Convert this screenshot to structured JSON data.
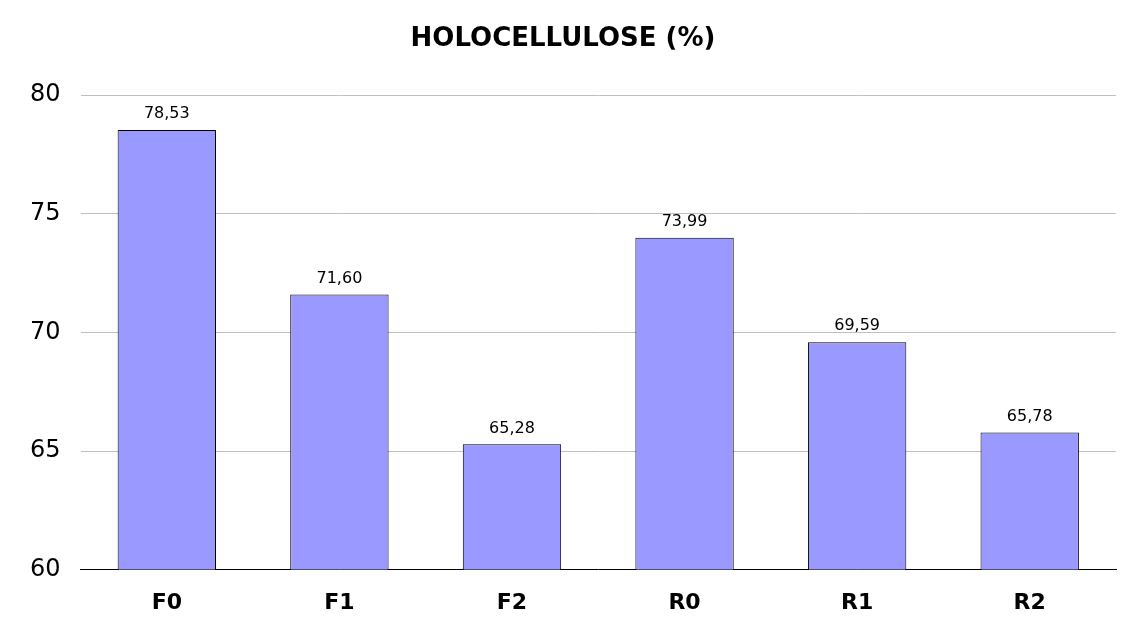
{
  "chart_data": {
    "type": "bar",
    "title": "HOLOCELLULOSE (%)",
    "categories": [
      "F0",
      "F1",
      "F2",
      "R0",
      "R1",
      "R2"
    ],
    "values": [
      78.53,
      71.6,
      65.28,
      73.99,
      69.59,
      65.78
    ],
    "value_labels": [
      "78,53",
      "71,60",
      "65,28",
      "73,99",
      "69,59",
      "65,78"
    ],
    "color": "#9999ff",
    "ylim": [
      60,
      80
    ],
    "yticks": [
      60,
      65,
      70,
      75,
      80
    ],
    "grid": true,
    "data_labels": true
  }
}
